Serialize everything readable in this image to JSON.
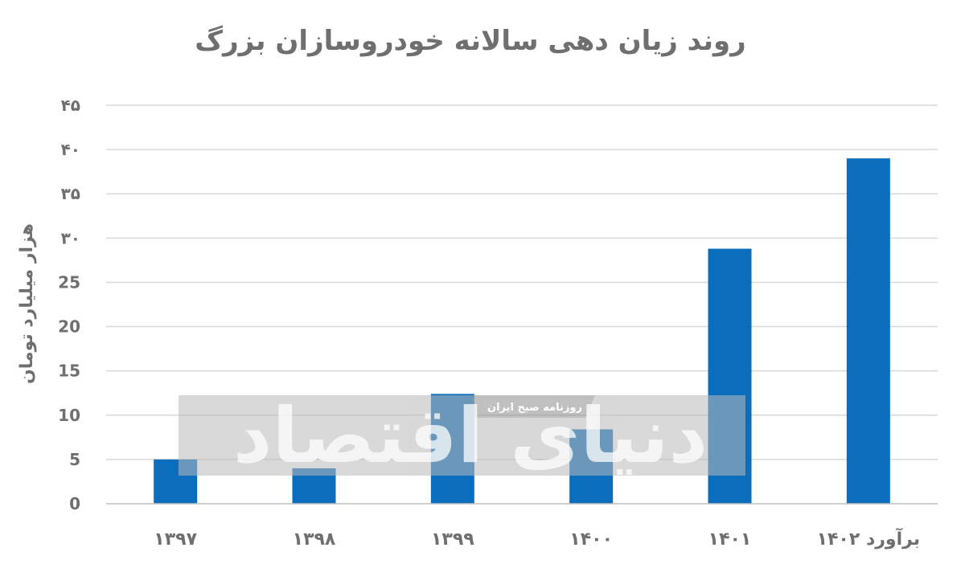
{
  "chart_data": {
    "type": "bar",
    "title": "روند زیان دهی سالانه خودروسازان بزرگ",
    "ylabel": "هزار میلیارد تومان",
    "xlabel": "",
    "categories": [
      "۱۳۹۷",
      "۱۳۹۸",
      "۱۳۹۹",
      "۱۴۰۰",
      "۱۴۰۱",
      "برآورد ۱۴۰۲"
    ],
    "values": [
      5,
      4,
      12.4,
      8.4,
      28.8,
      39
    ],
    "ylim": [
      0,
      45
    ],
    "yticks": [
      0,
      5,
      10,
      15,
      20,
      25,
      30,
      35,
      40,
      45
    ],
    "ytick_labels": [
      "0",
      "5",
      "10",
      "15",
      "20",
      "25",
      "۳۰",
      "۳۵",
      "۴۰",
      "۴۵"
    ],
    "grid": true,
    "bar_color": "#0a6ebd",
    "grid_color": "#d9d9d9",
    "text_color": "#6f6f6f"
  },
  "watermark": {
    "brand": "دنیای اقتصاد",
    "tagline": "روزنامه صبح ایران"
  }
}
